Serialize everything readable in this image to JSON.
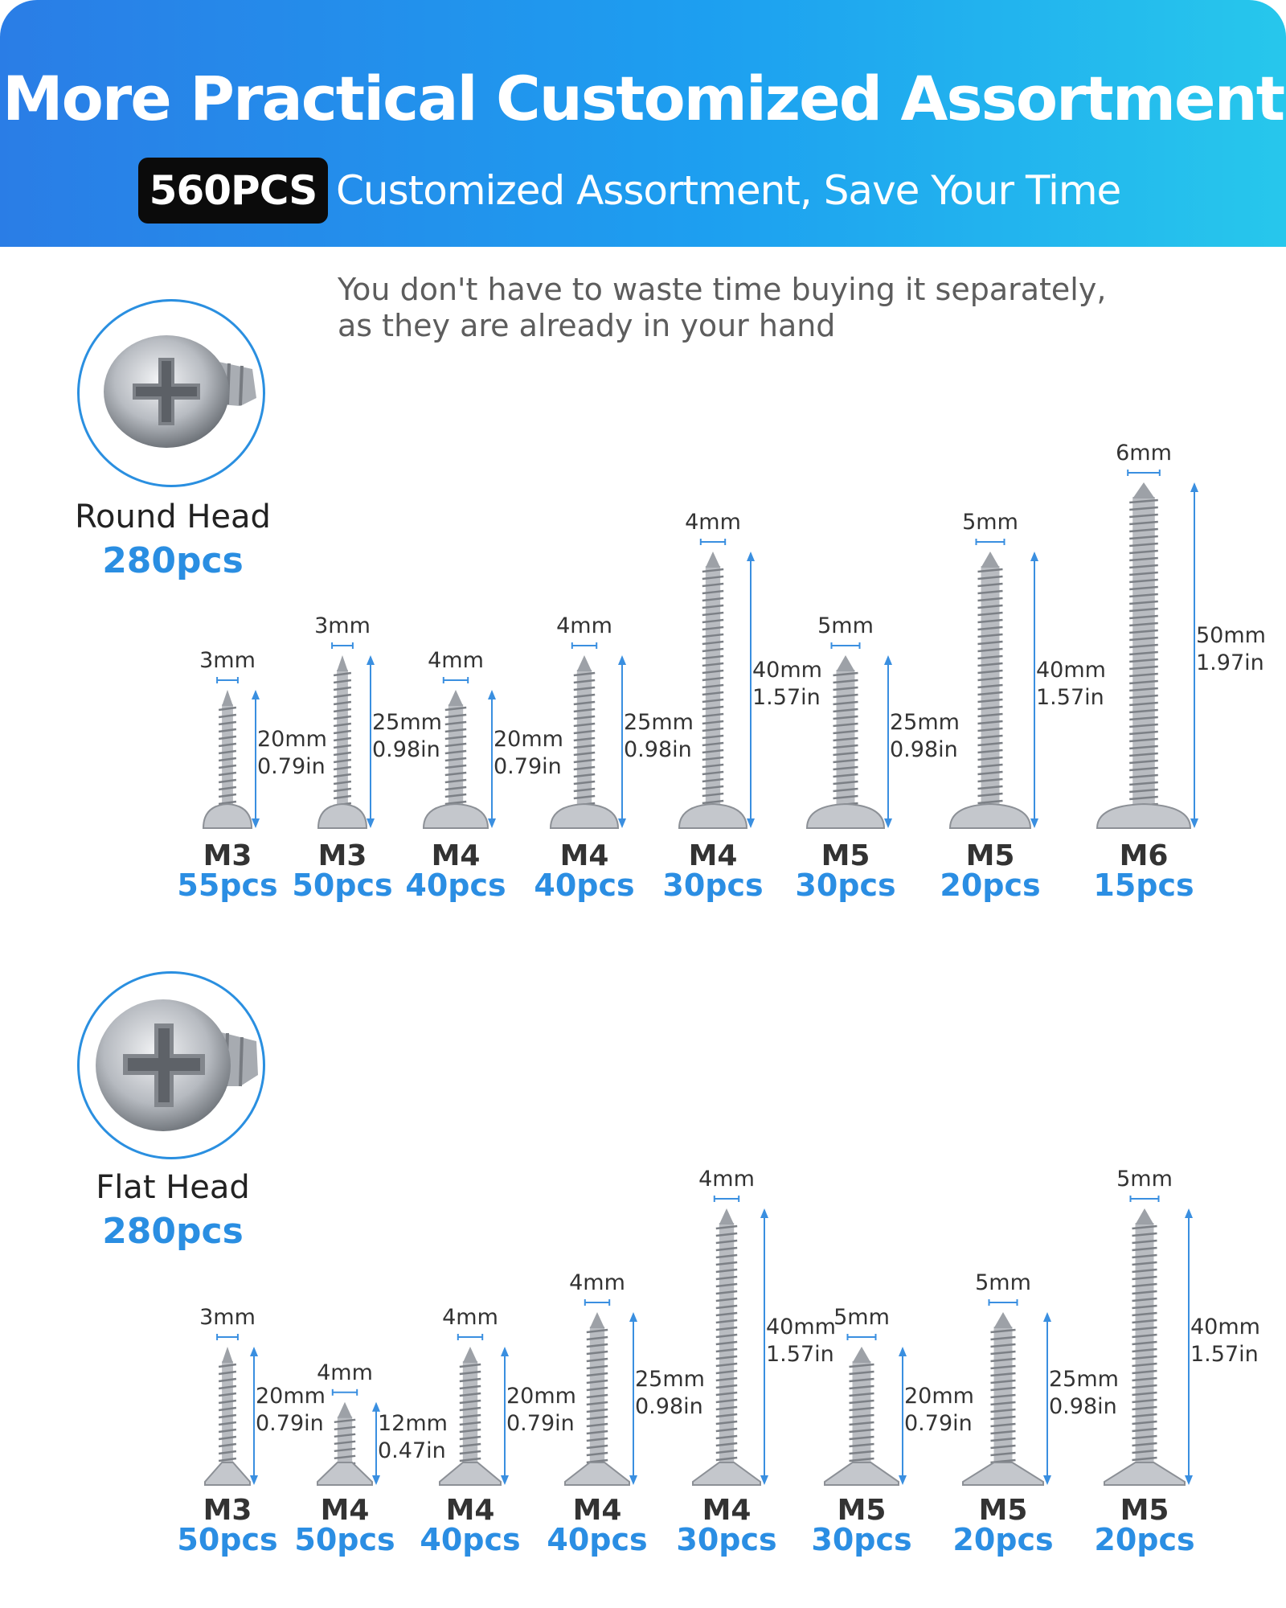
{
  "header": {
    "title": "More Practical Customized Assortment",
    "badge": "560PCS",
    "subtitle": "Customized Assortment, Save Your Time"
  },
  "tagline": [
    "You don't have to waste time buying it separately,",
    "as they are already in your hand"
  ],
  "colors": {
    "banner_start": "#2a7de6",
    "banner_end": "#27c7ec",
    "accent": "#2b8ee3",
    "dimension_line": "#3a8fe0",
    "screw_metal": "#b9bcc1"
  },
  "sections": [
    {
      "head_type": "round",
      "name": "Round Head",
      "count": "280pcs",
      "icon": "round-head-screw-icon",
      "screws": [
        {
          "diameter": "3mm",
          "length_mm": "20mm",
          "length_in": "0.79in",
          "size": "M3",
          "qty": "55pcs"
        },
        {
          "diameter": "3mm",
          "length_mm": "25mm",
          "length_in": "0.98in",
          "size": "M3",
          "qty": "50pcs"
        },
        {
          "diameter": "4mm",
          "length_mm": "20mm",
          "length_in": "0.79in",
          "size": "M4",
          "qty": "40pcs"
        },
        {
          "diameter": "4mm",
          "length_mm": "25mm",
          "length_in": "0.98in",
          "size": "M4",
          "qty": "40pcs"
        },
        {
          "diameter": "4mm",
          "length_mm": "40mm",
          "length_in": "1.57in",
          "size": "M4",
          "qty": "30pcs"
        },
        {
          "diameter": "5mm",
          "length_mm": "25mm",
          "length_in": "0.98in",
          "size": "M5",
          "qty": "30pcs"
        },
        {
          "diameter": "5mm",
          "length_mm": "40mm",
          "length_in": "1.57in",
          "size": "M5",
          "qty": "20pcs"
        },
        {
          "diameter": "6mm",
          "length_mm": "50mm",
          "length_in": "1.97in",
          "size": "M6",
          "qty": "15pcs"
        }
      ]
    },
    {
      "head_type": "flat",
      "name": "Flat Head",
      "count": "280pcs",
      "icon": "flat-head-screw-icon",
      "screws": [
        {
          "diameter": "3mm",
          "length_mm": "20mm",
          "length_in": "0.79in",
          "size": "M3",
          "qty": "50pcs"
        },
        {
          "diameter": "4mm",
          "length_mm": "12mm",
          "length_in": "0.47in",
          "size": "M4",
          "qty": "50pcs"
        },
        {
          "diameter": "4mm",
          "length_mm": "20mm",
          "length_in": "0.79in",
          "size": "M4",
          "qty": "40pcs"
        },
        {
          "diameter": "4mm",
          "length_mm": "25mm",
          "length_in": "0.98in",
          "size": "M4",
          "qty": "40pcs"
        },
        {
          "diameter": "4mm",
          "length_mm": "40mm",
          "length_in": "1.57in",
          "size": "M4",
          "qty": "30pcs"
        },
        {
          "diameter": "5mm",
          "length_mm": "20mm",
          "length_in": "0.79in",
          "size": "M5",
          "qty": "30pcs"
        },
        {
          "diameter": "5mm",
          "length_mm": "25mm",
          "length_in": "0.98in",
          "size": "M5",
          "qty": "20pcs"
        },
        {
          "diameter": "5mm",
          "length_mm": "40mm",
          "length_in": "1.57in",
          "size": "M5",
          "qty": "20pcs"
        }
      ]
    }
  ]
}
